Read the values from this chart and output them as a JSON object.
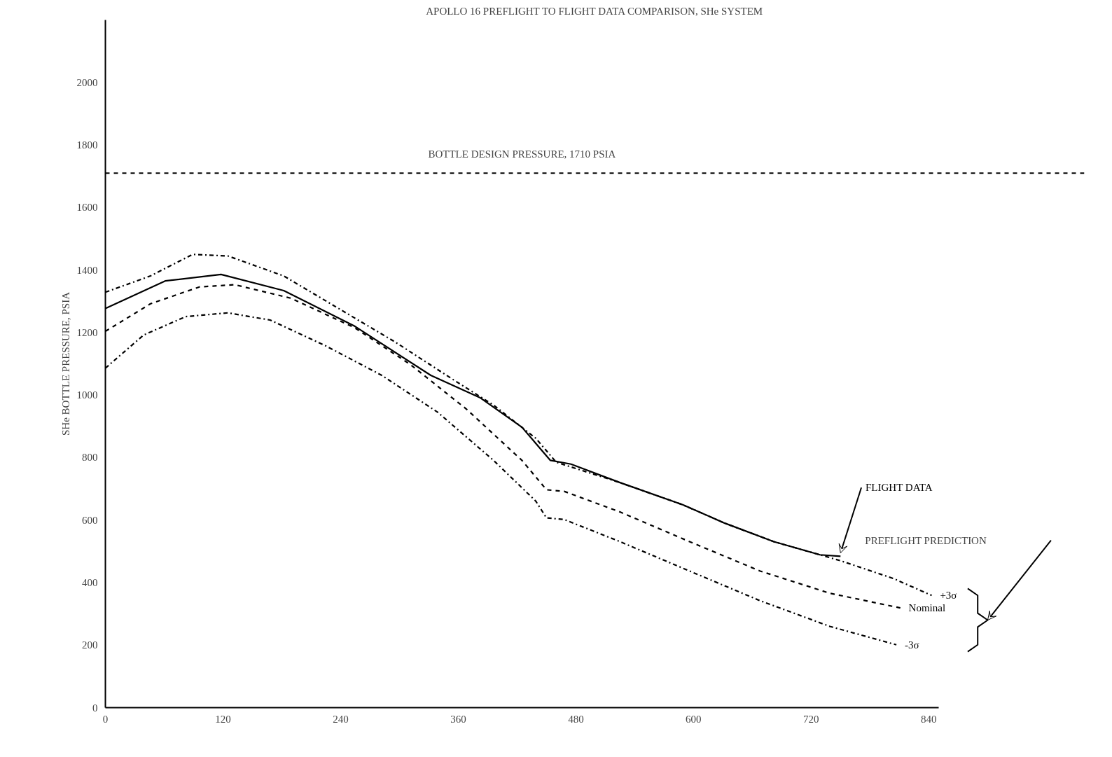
{
  "chart_data": {
    "type": "line",
    "title": "APOLLO 16 PREFLIGHT TO FLIGHT DATA COMPARISON, SHe SYSTEM",
    "ylabel": "SHe BOTTLE PRESSURE, PSIA",
    "xlim": [
      0,
      850
    ],
    "ylim": [
      0,
      2200
    ],
    "xticks": [
      0,
      120,
      240,
      360,
      480,
      600,
      720,
      840
    ],
    "yticks": [
      0,
      200,
      400,
      600,
      800,
      1000,
      1200,
      1400,
      1600,
      1800,
      2000
    ],
    "grid": false,
    "marker": "none",
    "series": [
      {
        "name": "FLIGHT DATA",
        "color": "#000000",
        "line_style": "solid",
        "x": [
          0,
          61,
          118,
          182,
          254,
          332,
          382,
          425,
          454,
          475,
          525,
          589,
          632,
          682,
          729,
          750
        ],
        "values": [
          1277,
          1365,
          1386,
          1334,
          1221,
          1063,
          992,
          897,
          791,
          779,
          720,
          649,
          590,
          531,
          489,
          484
        ]
      },
      {
        "name": "+3σ",
        "color": "#000000",
        "line_style": "dashdot",
        "x": [
          0,
          46,
          89,
          125,
          182,
          239,
          296,
          354,
          396,
          439,
          460,
          525,
          589,
          632,
          682,
          729,
          750,
          804,
          843
        ],
        "values": [
          1329,
          1381,
          1450,
          1445,
          1381,
          1275,
          1169,
          1051,
          968,
          862,
          785,
          720,
          649,
          590,
          531,
          489,
          470,
          413,
          359
        ]
      },
      {
        "name": "Nominal",
        "color": "#000000",
        "line_style": "dashed",
        "x": [
          0,
          46,
          96,
          132,
          189,
          254,
          311,
          368,
          425,
          450,
          468,
          525,
          596,
          668,
          739,
          811
        ],
        "values": [
          1204,
          1292,
          1346,
          1353,
          1310,
          1216,
          1098,
          956,
          791,
          697,
          692,
          626,
          531,
          437,
          366,
          319
        ]
      },
      {
        "name": "-3σ",
        "color": "#000000",
        "line_style": "dashdot",
        "x": [
          0,
          39,
          82,
          125,
          168,
          225,
          282,
          339,
          396,
          439,
          450,
          468,
          525,
          596,
          668,
          739,
          807
        ],
        "values": [
          1086,
          1192,
          1251,
          1263,
          1240,
          1157,
          1063,
          945,
          791,
          661,
          607,
          602,
          531,
          437,
          342,
          260,
          201
        ]
      }
    ],
    "ref_lines": [
      {
        "axis": "y",
        "value": 1710,
        "label": "BOTTLE DESIGN PRESSURE, 1710 PSIA",
        "color": "#000000",
        "line_style": "dashed"
      }
    ],
    "annotations": [
      "PREFLIGHT PREDICTION"
    ]
  }
}
